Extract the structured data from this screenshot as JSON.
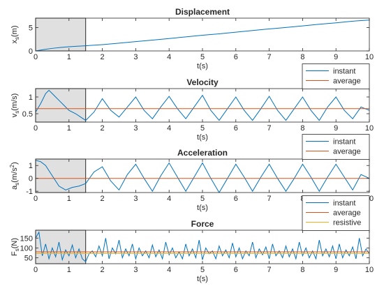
{
  "colors": {
    "instant": "#0072BD",
    "average": "#D95319",
    "resistive": "#EDB120",
    "shade": "#e0e0e0",
    "axis": "#262626"
  },
  "chart_data": [
    {
      "type": "line",
      "title": "Displacement",
      "xlabel": "t(s)",
      "ylabel": "x_s(m)",
      "ylabel_main": "x",
      "ylabel_sub": "s",
      "ylabel_rest": "(m)",
      "xlim": [
        0,
        10
      ],
      "ylim": [
        0,
        7
      ],
      "xticks": [
        0,
        1,
        2,
        3,
        4,
        5,
        6,
        7,
        8,
        9,
        10
      ],
      "yticks": [
        0,
        5
      ],
      "shaded_region_x": [
        0,
        1.5
      ],
      "legend": null,
      "series": [
        {
          "key": "instant",
          "x": [
            0,
            0.25,
            0.5,
            0.75,
            1.0,
            1.25,
            1.5,
            2,
            2.5,
            3,
            3.5,
            4,
            4.5,
            5,
            5.5,
            6,
            6.5,
            7,
            7.5,
            8,
            8.5,
            9,
            9.5,
            10
          ],
          "values": [
            0,
            0.3,
            0.55,
            0.75,
            0.9,
            1.0,
            1.1,
            1.35,
            1.65,
            2.0,
            2.3,
            2.65,
            3.0,
            3.35,
            3.65,
            4.0,
            4.35,
            4.7,
            5.0,
            5.35,
            5.7,
            6.0,
            6.35,
            6.6
          ]
        }
      ]
    },
    {
      "type": "line",
      "title": "Velocity",
      "xlabel": "t(s)",
      "ylabel": "v_s(m/s)",
      "ylabel_main": "v",
      "ylabel_sub": "s",
      "ylabel_rest": "(m/s)",
      "xlim": [
        0,
        10
      ],
      "ylim": [
        0.25,
        1.25
      ],
      "xticks": [
        0,
        1,
        2,
        3,
        4,
        5,
        6,
        7,
        8,
        9,
        10
      ],
      "yticks": [
        0.5,
        1
      ],
      "shaded_region_x": [
        0,
        1.5
      ],
      "legend": [
        "instant",
        "average"
      ],
      "legend_position": "top-right",
      "series": [
        {
          "key": "instant",
          "name": "instant",
          "x": [
            0,
            0.15,
            0.3,
            0.4,
            0.55,
            0.7,
            0.85,
            1.0,
            1.2,
            1.35,
            1.5,
            1.75,
            2.0,
            2.25,
            2.5,
            2.75,
            3.0,
            3.25,
            3.5,
            3.75,
            4.0,
            4.25,
            4.5,
            4.75,
            5.0,
            5.25,
            5.5,
            5.75,
            6.0,
            6.25,
            6.5,
            6.75,
            7.0,
            7.25,
            7.5,
            7.75,
            8.0,
            8.25,
            8.5,
            8.75,
            9.0,
            9.25,
            9.5,
            9.75,
            10.0
          ],
          "values": [
            0.55,
            0.8,
            1.1,
            1.2,
            1.05,
            0.9,
            0.75,
            0.6,
            0.5,
            0.4,
            0.3,
            0.55,
            0.95,
            0.6,
            0.4,
            0.7,
            1.0,
            0.6,
            0.35,
            0.7,
            1.02,
            0.65,
            0.35,
            0.7,
            1.05,
            0.6,
            0.3,
            0.65,
            1.0,
            0.6,
            0.3,
            0.65,
            1.02,
            0.6,
            0.3,
            0.65,
            1.0,
            0.6,
            0.3,
            0.7,
            1.0,
            0.6,
            0.35,
            0.7,
            0.6
          ]
        },
        {
          "key": "average",
          "name": "average",
          "x": [
            0,
            10
          ],
          "values": [
            0.65,
            0.65
          ]
        }
      ]
    },
    {
      "type": "line",
      "title": "Acceleration",
      "xlabel": "t(s)",
      "ylabel": "a_s(m/s^2)",
      "ylabel_main": "a",
      "ylabel_sub": "s",
      "ylabel_rest": "(m/s",
      "ylabel_sup": "2",
      "ylabel_close": ")",
      "xlim": [
        0,
        10
      ],
      "ylim": [
        -1.1,
        1.5
      ],
      "xticks": [
        0,
        1,
        2,
        3,
        4,
        5,
        6,
        7,
        8,
        9,
        10
      ],
      "yticks": [
        -1,
        0,
        1
      ],
      "shaded_region_x": [
        0,
        1.5
      ],
      "legend": [
        "instant",
        "average"
      ],
      "legend_position": "top-right",
      "series": [
        {
          "key": "instant",
          "name": "instant",
          "x": [
            0,
            0.15,
            0.3,
            0.5,
            0.7,
            0.9,
            1.1,
            1.3,
            1.5,
            1.75,
            2.0,
            2.25,
            2.5,
            2.75,
            3.0,
            3.25,
            3.5,
            3.75,
            4.0,
            4.25,
            4.5,
            4.75,
            5.0,
            5.25,
            5.5,
            5.75,
            6.0,
            6.25,
            6.5,
            6.75,
            7.0,
            7.25,
            7.5,
            7.75,
            8.0,
            8.25,
            8.5,
            8.75,
            9.0,
            9.25,
            9.5,
            9.75,
            10.0
          ],
          "values": [
            1.4,
            1.3,
            1.0,
            0.2,
            -0.6,
            -0.9,
            -0.7,
            -0.6,
            -0.4,
            0.5,
            0.9,
            -0.2,
            -0.9,
            0.3,
            1.1,
            0.0,
            -1.0,
            0.2,
            1.2,
            0.1,
            -1.0,
            0.1,
            1.2,
            0.0,
            -1.1,
            0.0,
            1.1,
            0.1,
            -1.0,
            0.1,
            1.1,
            0.0,
            -1.0,
            0.0,
            1.1,
            0.1,
            -1.0,
            0.1,
            1.1,
            0.1,
            -0.9,
            0.3,
            0.0
          ]
        },
        {
          "key": "average",
          "name": "average",
          "x": [
            0,
            10
          ],
          "values": [
            0,
            0
          ]
        }
      ]
    },
    {
      "type": "line",
      "title": "Force",
      "xlabel": "t(s)",
      "ylabel": "F_s(N)",
      "ylabel_main": "F",
      "ylabel_sub": "s",
      "ylabel_rest": "(N)",
      "xlim": [
        0,
        10
      ],
      "ylim": [
        20,
        190
      ],
      "xticks": [
        0,
        1,
        2,
        3,
        4,
        5,
        6,
        7,
        8,
        9,
        10
      ],
      "yticks": [
        50,
        100,
        150
      ],
      "shaded_region_x": [
        0,
        1.5
      ],
      "legend": [
        "instant",
        "average",
        "resistive"
      ],
      "legend_position": "top-right",
      "series": [
        {
          "key": "instant",
          "name": "instant",
          "x": [
            0,
            0.1,
            0.2,
            0.3,
            0.4,
            0.5,
            0.6,
            0.7,
            0.8,
            0.9,
            1.0,
            1.1,
            1.2,
            1.3,
            1.4,
            1.5,
            1.6,
            1.7,
            1.8,
            1.9,
            2.0,
            2.1,
            2.2,
            2.3,
            2.4,
            2.5,
            2.6,
            2.7,
            2.8,
            2.9,
            3.0,
            3.1,
            3.2,
            3.3,
            3.4,
            3.5,
            3.6,
            3.7,
            3.8,
            3.9,
            4.0,
            4.1,
            4.2,
            4.3,
            4.4,
            4.5,
            4.6,
            4.7,
            4.8,
            4.9,
            5.0,
            5.1,
            5.2,
            5.3,
            5.4,
            5.5,
            5.6,
            5.7,
            5.8,
            5.9,
            6.0,
            6.1,
            6.2,
            6.3,
            6.4,
            6.5,
            6.6,
            6.7,
            6.8,
            6.9,
            7.0,
            7.1,
            7.2,
            7.3,
            7.4,
            7.5,
            7.6,
            7.7,
            7.8,
            7.9,
            8.0,
            8.1,
            8.2,
            8.3,
            8.4,
            8.5,
            8.6,
            8.7,
            8.8,
            8.9,
            9.0,
            9.1,
            9.2,
            9.3,
            9.4,
            9.5,
            9.6,
            9.7,
            9.8,
            9.9,
            10.0
          ],
          "values": [
            150,
            180,
            60,
            120,
            45,
            100,
            55,
            130,
            40,
            90,
            60,
            115,
            50,
            95,
            45,
            30,
            70,
            85,
            55,
            110,
            60,
            150,
            45,
            100,
            70,
            140,
            50,
            95,
            60,
            120,
            45,
            100,
            60,
            85,
            50,
            115,
            55,
            90,
            45,
            130,
            65,
            100,
            50,
            80,
            45,
            120,
            60,
            95,
            50,
            140,
            40,
            100,
            70,
            85,
            45,
            110,
            60,
            90,
            50,
            125,
            55,
            100,
            45,
            85,
            60,
            130,
            50,
            95,
            65,
            105,
            45,
            120,
            60,
            85,
            50,
            110,
            55,
            95,
            45,
            130,
            60,
            100,
            50,
            85,
            45,
            140,
            60,
            95,
            55,
            110,
            45,
            120,
            50,
            90,
            60,
            105,
            45,
            150,
            60,
            95,
            70
          ]
        },
        {
          "key": "average",
          "name": "average",
          "x": [
            0,
            10
          ],
          "values": [
            80,
            80
          ]
        },
        {
          "key": "resistive",
          "name": "resistive",
          "x": [
            0,
            10
          ],
          "values": [
            72,
            72
          ]
        }
      ]
    }
  ]
}
